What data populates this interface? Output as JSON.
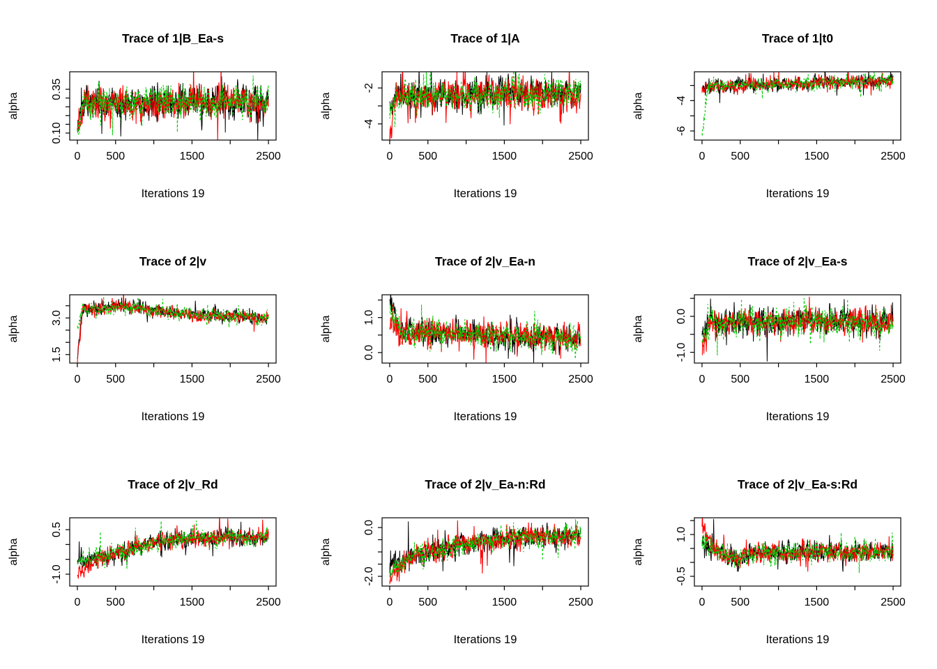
{
  "figure": {
    "background": "#ffffff",
    "description": "3x3 grid of MCMC trace plots, three chains per panel"
  },
  "chart_data": {
    "type": "line",
    "chart_kind": "mcmc-trace",
    "layout": "3x3-grid",
    "grid": false,
    "legend": "none",
    "x_range": [
      0,
      2500
    ],
    "xticks": [
      {
        "v": 0,
        "label": "0"
      },
      {
        "v": 500,
        "label": "500"
      },
      {
        "v": 1000,
        "label": ""
      },
      {
        "v": 1500,
        "label": "1500"
      },
      {
        "v": 2000,
        "label": ""
      },
      {
        "v": 2500,
        "label": "2500"
      }
    ],
    "chains": [
      {
        "name": "chain-1",
        "color": "#000000",
        "line_style": "solid"
      },
      {
        "name": "chain-2",
        "color": "#FF0000",
        "line_style": "solid"
      },
      {
        "name": "chain-3",
        "color": "#00CD00",
        "line_style": "dashed"
      }
    ],
    "panels": [
      {
        "title": "Trace of 1|B_Ea-s",
        "xlabel": "Iterations 19",
        "ylabel": "alpha",
        "ylim": [
          0.06,
          0.45
        ],
        "yticks": [
          {
            "v": 0.1,
            "label": "0.10"
          },
          {
            "v": 0.15,
            "label": ""
          },
          {
            "v": 0.2,
            "label": ""
          },
          {
            "v": 0.25,
            "label": ""
          },
          {
            "v": 0.3,
            "label": ""
          },
          {
            "v": 0.35,
            "label": "0.35"
          }
        ],
        "trace_summary": {
          "chain_start": [
            0.1,
            0.1,
            0.13
          ],
          "mean_path": [
            [
              0,
              0.1
            ],
            [
              80,
              0.27
            ],
            [
              2500,
              0.28
            ]
          ],
          "noise_sd": 0.045
        }
      },
      {
        "title": "Trace of 1|A",
        "xlabel": "Iterations 19",
        "ylabel": "alpha",
        "ylim": [
          -4.9,
          -1.1
        ],
        "yticks": [
          {
            "v": -4,
            "label": "-4"
          },
          {
            "v": -3,
            "label": ""
          },
          {
            "v": -2,
            "label": "-2"
          }
        ],
        "trace_summary": {
          "chain_start": [
            -2.8,
            -4.6,
            -3.2
          ],
          "mean_path": [
            [
              0,
              -3.5
            ],
            [
              100,
              -2.45
            ],
            [
              2500,
              -2.3
            ]
          ],
          "noise_sd": 0.42
        }
      },
      {
        "title": "Trace of 1|t0",
        "xlabel": "Iterations 19",
        "ylabel": "alpha",
        "ylim": [
          -6.6,
          -2.1
        ],
        "yticks": [
          {
            "v": -6,
            "label": "-6"
          },
          {
            "v": -5,
            "label": ""
          },
          {
            "v": -4,
            "label": "-4"
          },
          {
            "v": -3,
            "label": ""
          }
        ],
        "trace_summary": {
          "chain_start": [
            -3.3,
            -3.5,
            -6.2
          ],
          "mean_path": [
            [
              0,
              -4.0
            ],
            [
              80,
              -3.1
            ],
            [
              2500,
              -2.65
            ]
          ],
          "noise_sd": 0.22
        }
      },
      {
        "title": "Trace of 2|v",
        "xlabel": "Iterations 19",
        "ylabel": "alpha",
        "ylim": [
          1.15,
          3.95
        ],
        "yticks": [
          {
            "v": 1.5,
            "label": "1.5"
          },
          {
            "v": 2.0,
            "label": ""
          },
          {
            "v": 2.5,
            "label": ""
          },
          {
            "v": 3.0,
            "label": "3.0"
          },
          {
            "v": 3.5,
            "label": ""
          }
        ],
        "trace_summary": {
          "chain_start": [
            1.4,
            1.3,
            2.6
          ],
          "mean_path": [
            [
              0,
              2.0
            ],
            [
              70,
              3.4
            ],
            [
              600,
              3.45
            ],
            [
              1600,
              3.1
            ],
            [
              2500,
              3.0
            ]
          ],
          "noise_sd": 0.13
        }
      },
      {
        "title": "Trace of 2|v_Ea-n",
        "xlabel": "Iterations 19",
        "ylabel": "alpha",
        "ylim": [
          -0.3,
          1.65
        ],
        "yticks": [
          {
            "v": 0.0,
            "label": "0.0"
          },
          {
            "v": 0.5,
            "label": ""
          },
          {
            "v": 1.0,
            "label": "1.0"
          },
          {
            "v": 1.5,
            "label": ""
          }
        ],
        "trace_summary": {
          "chain_start": [
            1.5,
            0.8,
            1.15
          ],
          "mean_path": [
            [
              0,
              1.0
            ],
            [
              130,
              0.6
            ],
            [
              1300,
              0.5
            ],
            [
              2500,
              0.38
            ]
          ],
          "noise_sd": 0.18
        }
      },
      {
        "title": "Trace of 2|v_Ea-s",
        "xlabel": "Iterations 19",
        "ylabel": "alpha",
        "ylim": [
          -1.3,
          0.6
        ],
        "yticks": [
          {
            "v": -1.0,
            "label": "-1.0"
          },
          {
            "v": -0.5,
            "label": ""
          },
          {
            "v": 0.0,
            "label": "0.0"
          },
          {
            "v": 0.5,
            "label": ""
          }
        ],
        "trace_summary": {
          "chain_start": [
            -0.35,
            -0.95,
            -0.75
          ],
          "mean_path": [
            [
              0,
              -0.7
            ],
            [
              110,
              -0.15
            ],
            [
              2500,
              -0.12
            ]
          ],
          "noise_sd": 0.18
        }
      },
      {
        "title": "Trace of 2|v_Rd",
        "xlabel": "Iterations 19",
        "ylabel": "alpha",
        "ylim": [
          -1.4,
          0.9
        ],
        "yticks": [
          {
            "v": -1.0,
            "label": "-1.0"
          },
          {
            "v": -0.5,
            "label": ""
          },
          {
            "v": 0.0,
            "label": ""
          },
          {
            "v": 0.5,
            "label": "0.5"
          }
        ],
        "trace_summary": {
          "chain_start": [
            -0.6,
            -0.95,
            -0.55
          ],
          "mean_path": [
            [
              0,
              -0.75
            ],
            [
              300,
              -0.45
            ],
            [
              800,
              -0.05
            ],
            [
              1300,
              0.2
            ],
            [
              2500,
              0.25
            ]
          ],
          "noise_sd": 0.14
        }
      },
      {
        "title": "Trace of 2|v_Ea-n:Rd",
        "xlabel": "Iterations 19",
        "ylabel": "alpha",
        "ylim": [
          -2.4,
          0.4
        ],
        "yticks": [
          {
            "v": -2.0,
            "label": "-2.0"
          },
          {
            "v": -1.5,
            "label": ""
          },
          {
            "v": -1.0,
            "label": ""
          },
          {
            "v": -0.5,
            "label": ""
          },
          {
            "v": 0.0,
            "label": "0.0"
          }
        ],
        "trace_summary": {
          "chain_start": [
            -1.6,
            -1.95,
            -1.75
          ],
          "mean_path": [
            [
              0,
              -1.75
            ],
            [
              300,
              -1.2
            ],
            [
              900,
              -0.7
            ],
            [
              1600,
              -0.4
            ],
            [
              2500,
              -0.32
            ]
          ],
          "noise_sd": 0.22
        }
      },
      {
        "title": "Trace of 2|v_Ea-s:Rd",
        "xlabel": "Iterations 19",
        "ylabel": "alpha",
        "ylim": [
          -0.85,
          1.6
        ],
        "yticks": [
          {
            "v": -0.5,
            "label": "-0.5"
          },
          {
            "v": 0.0,
            "label": ""
          },
          {
            "v": 0.5,
            "label": ""
          },
          {
            "v": 1.0,
            "label": "1.0"
          },
          {
            "v": 1.5,
            "label": ""
          }
        ],
        "trace_summary": {
          "chain_start": [
            0.65,
            1.4,
            0.75
          ],
          "mean_path": [
            [
              0,
              1.0
            ],
            [
              160,
              0.45
            ],
            [
              450,
              0.12
            ],
            [
              750,
              0.38
            ],
            [
              2500,
              0.36
            ]
          ],
          "noise_sd": 0.17
        }
      }
    ]
  }
}
